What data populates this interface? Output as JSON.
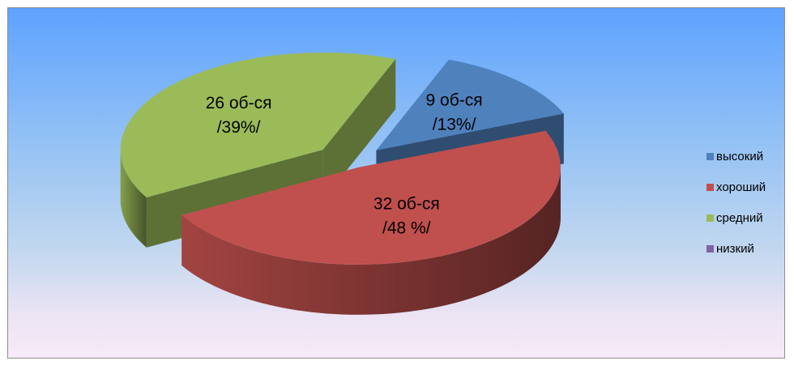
{
  "chart_data": {
    "type": "pie",
    "categories": [
      "высокий",
      "хороший",
      "средний",
      "низкий"
    ],
    "values": [
      13,
      48,
      39,
      0
    ],
    "counts": [
      9,
      32,
      26,
      0
    ],
    "slice_labels": [
      [
        "9  об-ся",
        "/13%/"
      ],
      [
        "32 об-ся",
        "/48 %/"
      ],
      [
        "26 об-ся",
        "/39%/"
      ],
      null
    ],
    "colors": [
      "#4f81bd",
      "#c0504d",
      "#9bbb59",
      "#8064a2"
    ],
    "legend_position": "right",
    "style": "3d-exploded"
  }
}
